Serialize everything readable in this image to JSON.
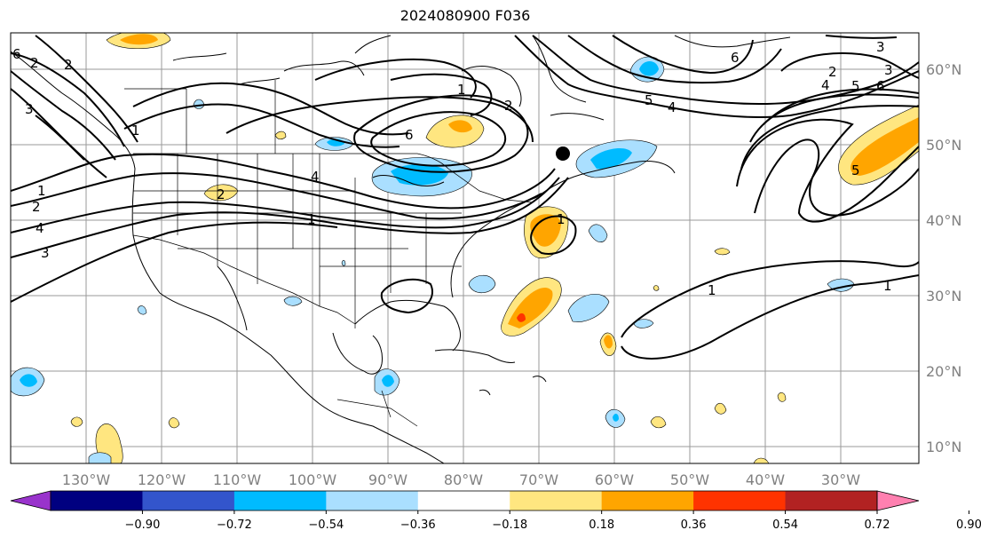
{
  "title": "2024080900 F036",
  "lon_labels": [
    "130°W",
    "120°W",
    "110°W",
    "100°W",
    "90°W",
    "80°W",
    "70°W",
    "60°W",
    "50°W",
    "40°W",
    "30°W"
  ],
  "lat_labels": [
    "60°N",
    "50°N",
    "40°N",
    "30°N",
    "20°N",
    "10°N"
  ],
  "colorbar": {
    "ticks": [
      "−0.90",
      "−0.72",
      "−0.54",
      "−0.36",
      "−0.18",
      "0.18",
      "0.36",
      "0.54",
      "0.72",
      "0.90"
    ],
    "colors": [
      "#9933cc",
      "#000080",
      "#3355cc",
      "#00bbff",
      "#aadfff",
      "#ffffff",
      "#ffe680",
      "#ffa500",
      "#ff3300",
      "#b22222",
      "#ff80b0"
    ]
  },
  "contour_labels": [
    "6",
    "2",
    "2",
    "3",
    "1",
    "1",
    "2",
    "4",
    "3",
    "1",
    "2",
    "6",
    "4",
    "1",
    "2",
    "1",
    "6",
    "3",
    "2",
    "3",
    "4",
    "5",
    "6",
    "5",
    "4",
    "1",
    "1",
    "5"
  ],
  "colors": {
    "grid": "#9a9a9a",
    "tick": "#808080"
  }
}
